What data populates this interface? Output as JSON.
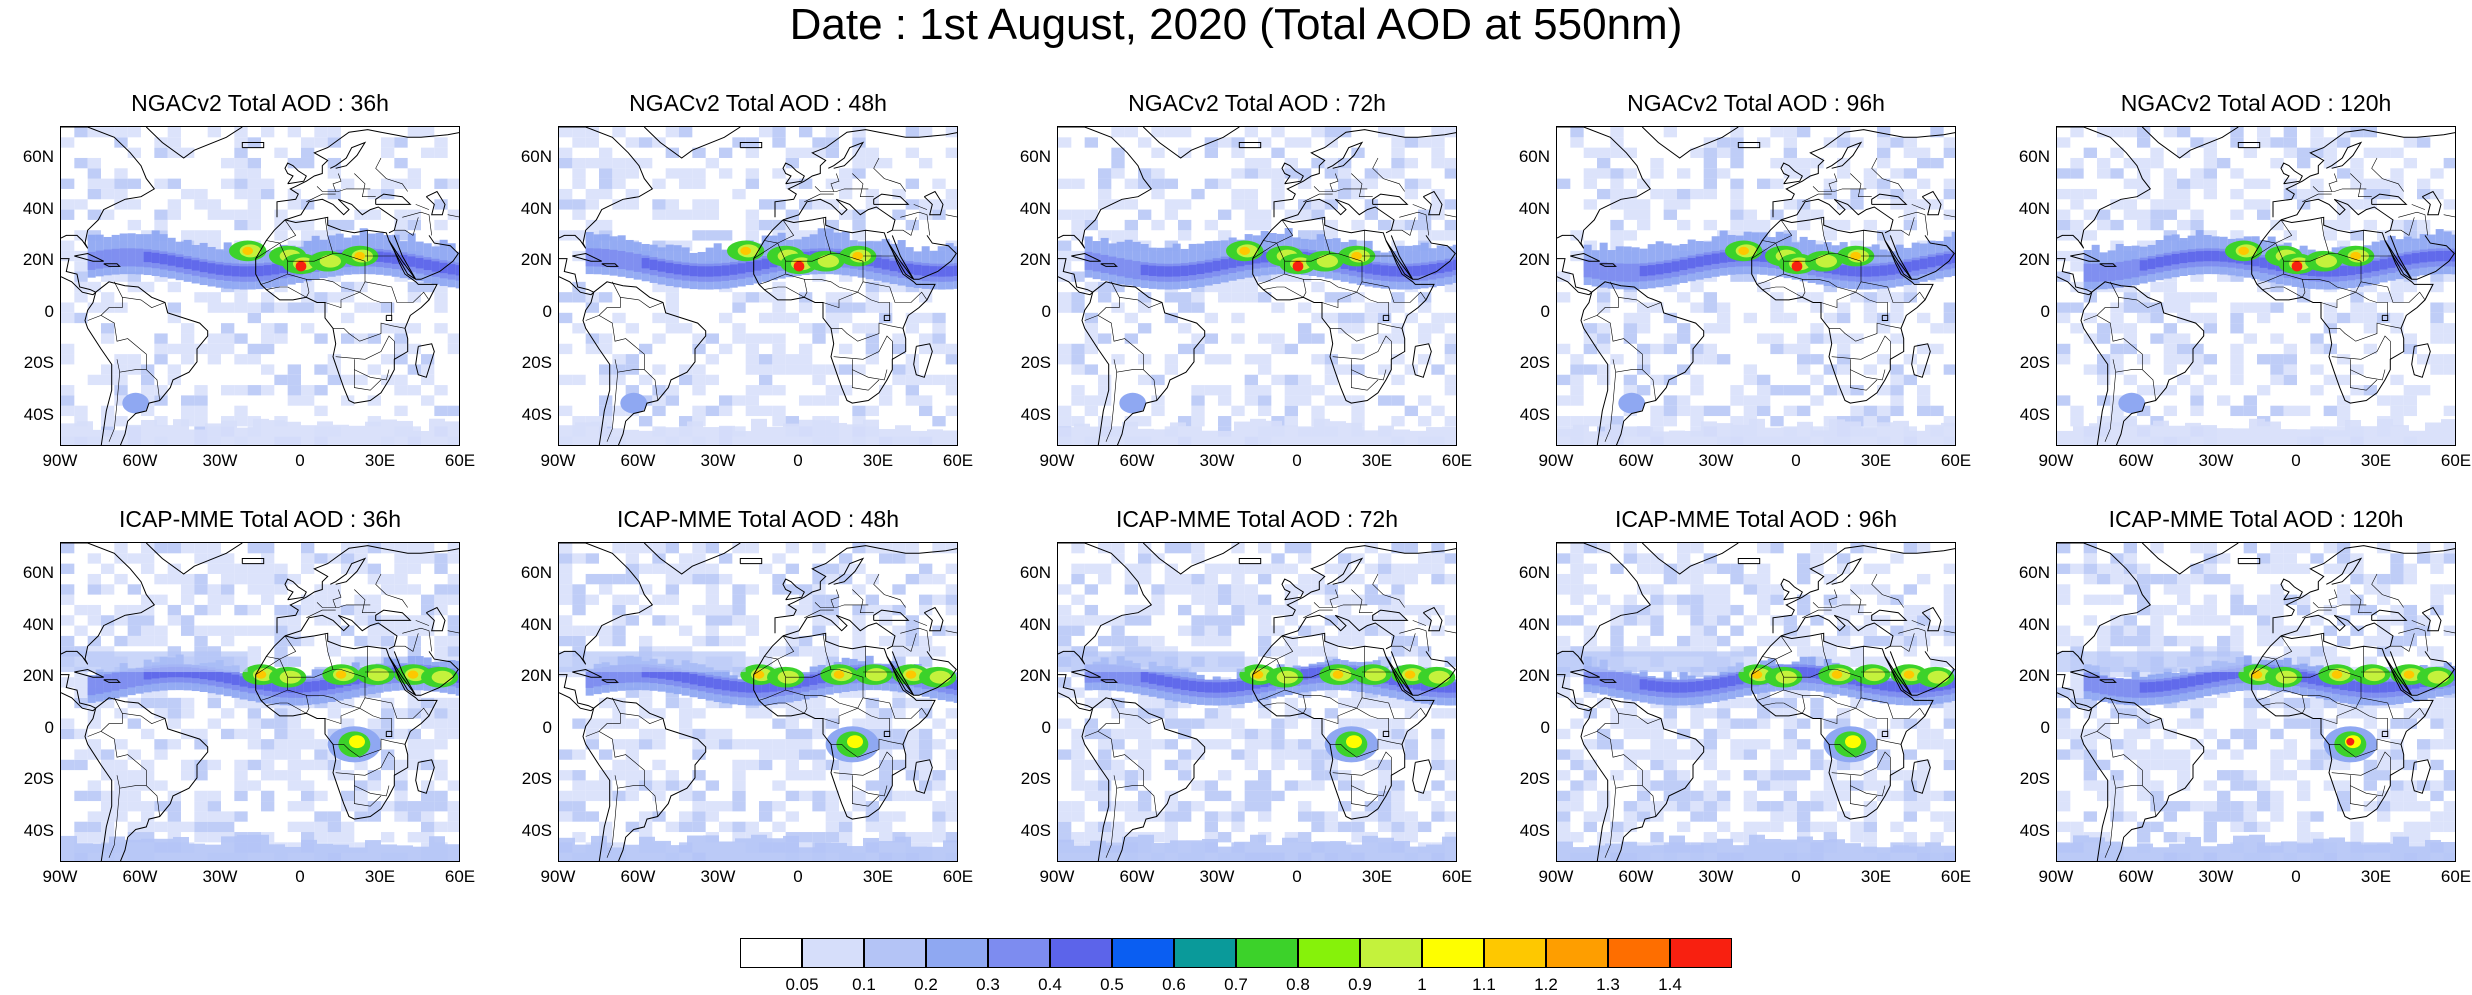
{
  "title": "Date : 1st August, 2020 (Total AOD at 550nm)",
  "lat_ticks": [
    "60N",
    "40N",
    "20N",
    "0",
    "20S",
    "40S"
  ],
  "lon_ticks": [
    "90W",
    "60W",
    "30W",
    "0",
    "30E",
    "60E"
  ],
  "panels": [
    {
      "title": "NGACv2 Total AOD : 36h",
      "model": "NGACv2",
      "lead": "36h"
    },
    {
      "title": "NGACv2 Total AOD : 48h",
      "model": "NGACv2",
      "lead": "48h"
    },
    {
      "title": "NGACv2 Total AOD : 72h",
      "model": "NGACv2",
      "lead": "72h"
    },
    {
      "title": "NGACv2 Total AOD : 96h",
      "model": "NGACv2",
      "lead": "96h"
    },
    {
      "title": "NGACv2 Total AOD : 120h",
      "model": "NGACv2",
      "lead": "120h"
    },
    {
      "title": "ICAP-MME Total AOD : 36h",
      "model": "ICAP-MME",
      "lead": "36h"
    },
    {
      "title": "ICAP-MME Total AOD : 48h",
      "model": "ICAP-MME",
      "lead": "48h"
    },
    {
      "title": "ICAP-MME Total AOD : 72h",
      "model": "ICAP-MME",
      "lead": "72h"
    },
    {
      "title": "ICAP-MME Total AOD : 96h",
      "model": "ICAP-MME",
      "lead": "96h"
    },
    {
      "title": "ICAP-MME Total AOD : 120h",
      "model": "ICAP-MME",
      "lead": "120h"
    }
  ],
  "colorbar": {
    "labels": [
      "0.05",
      "0.1",
      "0.2",
      "0.3",
      "0.4",
      "0.5",
      "0.6",
      "0.7",
      "0.8",
      "0.9",
      "1",
      "1.1",
      "1.2",
      "1.3",
      "1.4"
    ],
    "colors": [
      "#ffffff",
      "#d6defa",
      "#b4c4f6",
      "#8fa8f2",
      "#7d8cf0",
      "#5c64ea",
      "#0a5ef2",
      "#0a9a9a",
      "#3cd22a",
      "#86f20a",
      "#c4f23c",
      "#fefe00",
      "#fec800",
      "#fe9e00",
      "#fe6e00",
      "#f82010"
    ]
  }
}
